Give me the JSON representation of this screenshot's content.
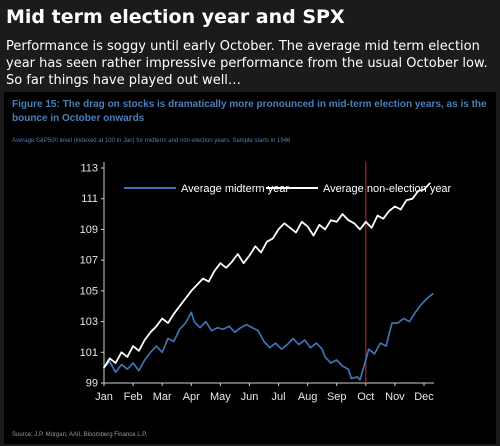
{
  "post": {
    "title": "Mid term election year and SPX",
    "body": "Performance is soggy until early October. The average mid term election year has seen rather impressive performance from the usual October low. So far things have played out well…"
  },
  "figure": {
    "caption": "Figure 15: The drag on stocks is dramatically more pronounced in mid-term election years, as is the bounce in October onwards",
    "subcaption": "Average S&P500 level (indexed at 100 in Jan) for midterm and non-election years. Sample starts in 1946",
    "source": "Source: J.P. Morgan, AAII, Bloomberg Finance L.P."
  },
  "chart_data": {
    "type": "line",
    "categories": [
      "Jan",
      "Feb",
      "Mar",
      "Apr",
      "May",
      "Jun",
      "Jul",
      "Aug",
      "Sep",
      "Oct",
      "Nov",
      "Dec"
    ],
    "ylim": [
      99,
      113
    ],
    "yticks": [
      99,
      101,
      103,
      105,
      107,
      109,
      111,
      113
    ],
    "grid": false,
    "legend_position": "top",
    "series": [
      {
        "name": "Average midterm year",
        "color": "#3f73b3",
        "values": [
          [
            1.0,
            100.0
          ],
          [
            1.2,
            100.4
          ],
          [
            1.4,
            99.7
          ],
          [
            1.6,
            100.2
          ],
          [
            1.8,
            99.9
          ],
          [
            2.0,
            100.3
          ],
          [
            2.2,
            99.8
          ],
          [
            2.4,
            100.5
          ],
          [
            2.6,
            101.0
          ],
          [
            2.8,
            101.4
          ],
          [
            3.0,
            101.0
          ],
          [
            3.2,
            101.9
          ],
          [
            3.4,
            101.7
          ],
          [
            3.6,
            102.5
          ],
          [
            3.8,
            102.9
          ],
          [
            4.0,
            103.6
          ],
          [
            4.1,
            103.0
          ],
          [
            4.3,
            102.6
          ],
          [
            4.5,
            103.0
          ],
          [
            4.7,
            102.4
          ],
          [
            4.9,
            102.6
          ],
          [
            5.1,
            102.5
          ],
          [
            5.3,
            102.7
          ],
          [
            5.5,
            102.3
          ],
          [
            5.7,
            102.6
          ],
          [
            5.9,
            102.8
          ],
          [
            6.1,
            102.6
          ],
          [
            6.3,
            102.4
          ],
          [
            6.5,
            101.7
          ],
          [
            6.7,
            101.3
          ],
          [
            6.9,
            101.6
          ],
          [
            7.1,
            101.2
          ],
          [
            7.3,
            101.5
          ],
          [
            7.5,
            101.9
          ],
          [
            7.7,
            101.5
          ],
          [
            7.9,
            101.8
          ],
          [
            8.1,
            101.3
          ],
          [
            8.3,
            101.6
          ],
          [
            8.5,
            101.2
          ],
          [
            8.6,
            100.7
          ],
          [
            8.8,
            100.3
          ],
          [
            9.0,
            100.5
          ],
          [
            9.2,
            100.1
          ],
          [
            9.4,
            99.9
          ],
          [
            9.5,
            99.3
          ],
          [
            9.7,
            99.4
          ],
          [
            9.8,
            99.2
          ],
          [
            10.0,
            100.5
          ],
          [
            10.1,
            101.2
          ],
          [
            10.3,
            100.9
          ],
          [
            10.5,
            101.6
          ],
          [
            10.7,
            101.4
          ],
          [
            10.8,
            102.2
          ],
          [
            10.9,
            102.9
          ],
          [
            11.1,
            102.9
          ],
          [
            11.3,
            103.2
          ],
          [
            11.5,
            103.0
          ],
          [
            11.7,
            103.6
          ],
          [
            11.9,
            104.1
          ],
          [
            12.1,
            104.5
          ],
          [
            12.3,
            104.8
          ]
        ]
      },
      {
        "name": "Average non-election year",
        "color": "#ffffff",
        "values": [
          [
            1.0,
            100.0
          ],
          [
            1.2,
            100.6
          ],
          [
            1.4,
            100.3
          ],
          [
            1.6,
            101.0
          ],
          [
            1.8,
            100.7
          ],
          [
            2.0,
            101.4
          ],
          [
            2.2,
            101.1
          ],
          [
            2.4,
            101.8
          ],
          [
            2.6,
            102.3
          ],
          [
            2.8,
            102.7
          ],
          [
            3.0,
            103.2
          ],
          [
            3.2,
            102.9
          ],
          [
            3.4,
            103.5
          ],
          [
            3.6,
            104.0
          ],
          [
            3.8,
            104.5
          ],
          [
            4.0,
            105.0
          ],
          [
            4.2,
            105.4
          ],
          [
            4.4,
            105.8
          ],
          [
            4.6,
            105.6
          ],
          [
            4.8,
            106.3
          ],
          [
            5.0,
            106.8
          ],
          [
            5.2,
            106.5
          ],
          [
            5.4,
            106.9
          ],
          [
            5.6,
            107.4
          ],
          [
            5.8,
            106.8
          ],
          [
            6.0,
            107.3
          ],
          [
            6.2,
            107.9
          ],
          [
            6.4,
            107.5
          ],
          [
            6.6,
            108.2
          ],
          [
            6.8,
            108.4
          ],
          [
            7.0,
            109.0
          ],
          [
            7.2,
            109.4
          ],
          [
            7.4,
            109.1
          ],
          [
            7.6,
            108.8
          ],
          [
            7.8,
            109.5
          ],
          [
            8.0,
            109.2
          ],
          [
            8.2,
            108.6
          ],
          [
            8.4,
            109.3
          ],
          [
            8.6,
            109.0
          ],
          [
            8.8,
            109.6
          ],
          [
            9.0,
            109.5
          ],
          [
            9.2,
            110.0
          ],
          [
            9.4,
            109.6
          ],
          [
            9.6,
            109.4
          ],
          [
            9.8,
            109.0
          ],
          [
            10.0,
            109.5
          ],
          [
            10.2,
            109.1
          ],
          [
            10.4,
            109.9
          ],
          [
            10.6,
            109.7
          ],
          [
            10.8,
            110.2
          ],
          [
            11.0,
            110.5
          ],
          [
            11.2,
            110.3
          ],
          [
            11.4,
            110.9
          ],
          [
            11.6,
            111.0
          ],
          [
            11.8,
            111.5
          ],
          [
            12.0,
            111.6
          ],
          [
            12.2,
            112.0
          ]
        ]
      }
    ],
    "annotation": {
      "type": "vertical-line",
      "x": 10.0,
      "color": "#a0282c"
    }
  }
}
